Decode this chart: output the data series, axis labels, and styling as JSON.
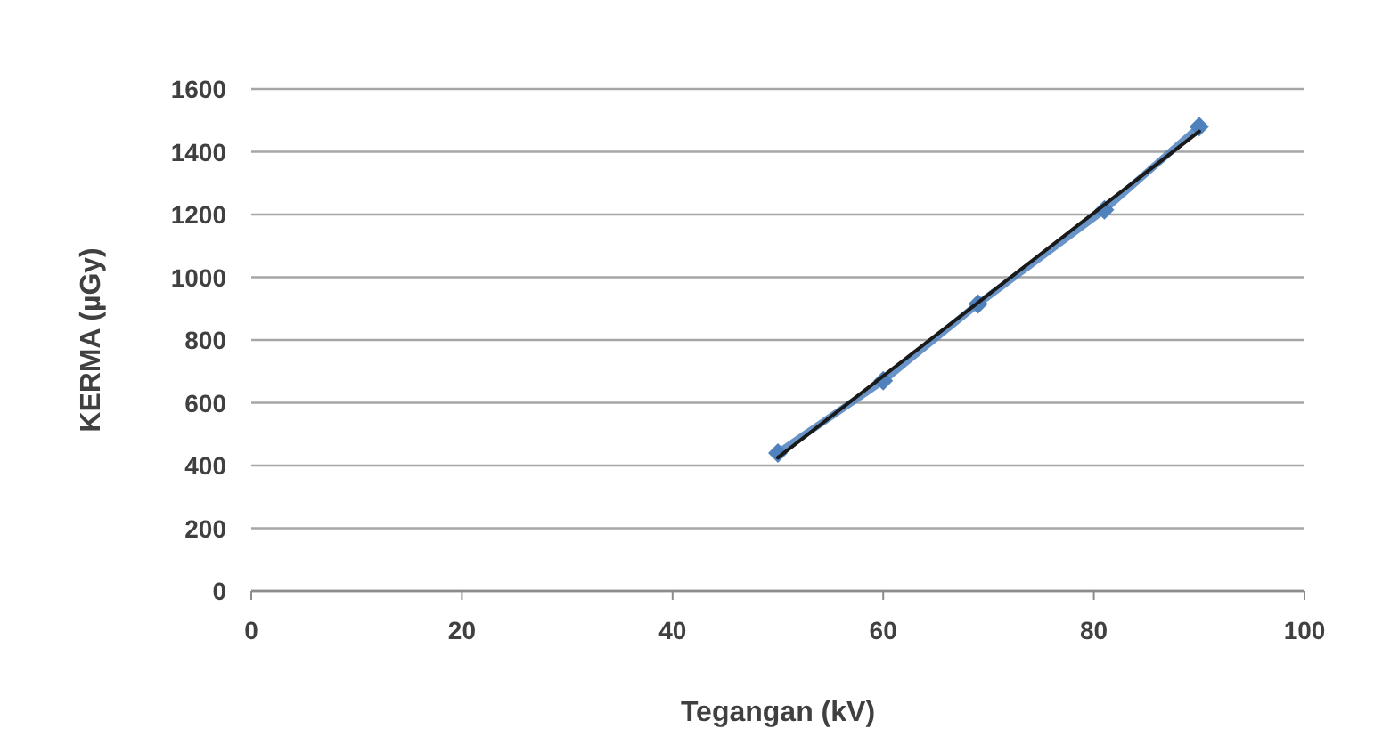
{
  "chart_data": {
    "type": "line",
    "xlabel": "Tegangan (kV)",
    "ylabel": "KERMA (µGy)",
    "xlim": [
      0,
      100
    ],
    "xticks": [
      0,
      20,
      40,
      60,
      80,
      100
    ],
    "ylim": [
      0,
      1600
    ],
    "yticks": [
      0,
      200,
      400,
      600,
      800,
      1000,
      1200,
      1400,
      1600
    ],
    "grid": "y",
    "marker": "diamond",
    "line_style": "solid",
    "series": [
      {
        "color": "#4f81bd",
        "x": [
          50,
          60,
          69,
          81,
          90
        ],
        "values": [
          440,
          670,
          915,
          1215,
          1480
        ]
      },
      {
        "type": "line",
        "color": "#1a1a1a",
        "x": [
          50,
          90
        ],
        "values": [
          425,
          1465
        ],
        "marker": "none"
      }
    ]
  }
}
